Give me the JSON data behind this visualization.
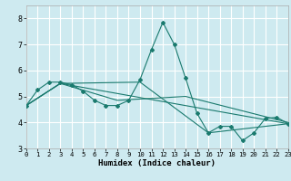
{
  "title": "",
  "xlabel": "Humidex (Indice chaleur)",
  "xlim": [
    0,
    23
  ],
  "ylim": [
    3,
    8.5
  ],
  "yticks": [
    3,
    4,
    5,
    6,
    7,
    8
  ],
  "xticks": [
    0,
    1,
    2,
    3,
    4,
    5,
    6,
    7,
    8,
    9,
    10,
    11,
    12,
    13,
    14,
    15,
    16,
    17,
    18,
    19,
    20,
    21,
    22,
    23
  ],
  "bg_color": "#ceeaf0",
  "line_color": "#1a7a6e",
  "grid_color": "#ffffff",
  "main_line": [
    [
      0,
      4.65
    ],
    [
      1,
      5.25
    ],
    [
      2,
      5.55
    ],
    [
      3,
      5.55
    ],
    [
      4,
      5.45
    ],
    [
      5,
      5.2
    ],
    [
      6,
      4.85
    ],
    [
      7,
      4.65
    ],
    [
      8,
      4.65
    ],
    [
      9,
      4.85
    ],
    [
      10,
      5.65
    ],
    [
      11,
      6.8
    ],
    [
      12,
      7.85
    ],
    [
      13,
      7.0
    ],
    [
      14,
      5.7
    ],
    [
      15,
      4.35
    ],
    [
      16,
      3.6
    ],
    [
      17,
      3.85
    ],
    [
      18,
      3.85
    ],
    [
      19,
      3.3
    ],
    [
      20,
      3.6
    ],
    [
      21,
      4.15
    ],
    [
      22,
      4.2
    ],
    [
      23,
      3.95
    ]
  ],
  "extra_lines": [
    [
      [
        0,
        4.65
      ],
      [
        3,
        5.5
      ],
      [
        23,
        3.95
      ]
    ],
    [
      [
        0,
        4.65
      ],
      [
        3,
        5.5
      ],
      [
        10,
        5.55
      ],
      [
        16,
        3.6
      ],
      [
        23,
        3.95
      ]
    ],
    [
      [
        0,
        4.65
      ],
      [
        3,
        5.5
      ],
      [
        8,
        4.85
      ],
      [
        14,
        5.0
      ],
      [
        23,
        4.0
      ]
    ]
  ]
}
